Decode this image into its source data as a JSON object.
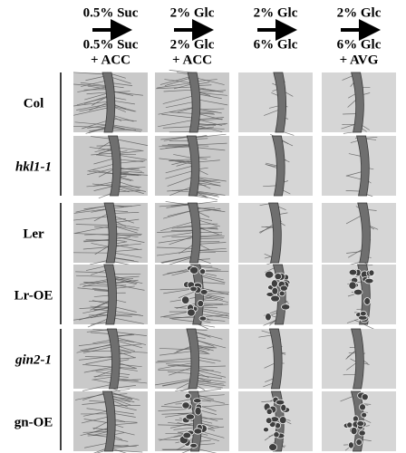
{
  "columns": [
    {
      "from": "0.5% Suc",
      "to": "0.5% Suc",
      "to_extra": "+ ACC"
    },
    {
      "from": "2% Glc",
      "to": "2% Glc",
      "to_extra": "+ ACC"
    },
    {
      "from": "2% Glc",
      "to": "6% Glc"
    },
    {
      "from": "2% Glc",
      "to": "6% Glc",
      "to_extra": "+ AVG"
    }
  ],
  "rows": [
    {
      "label": "Col"
    },
    {
      "label": "hkl1-1"
    },
    {
      "label": "Ler"
    },
    {
      "label": "Lr-OE"
    },
    {
      "label": "gin2-1"
    },
    {
      "label": "gn-OE"
    }
  ]
}
